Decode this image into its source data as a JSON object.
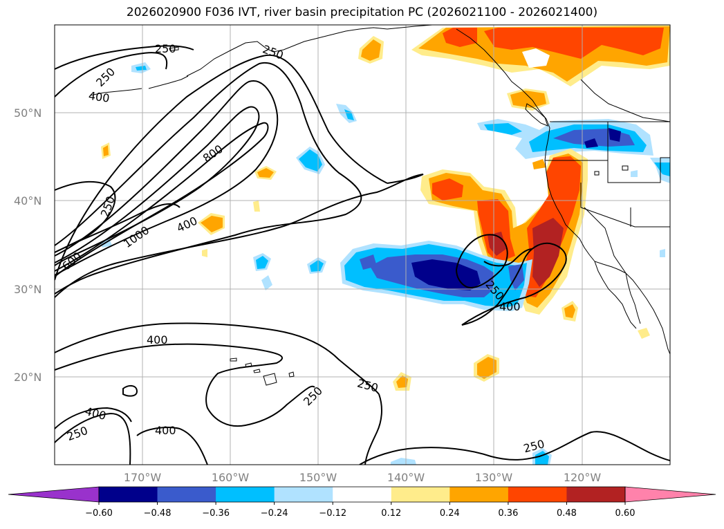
{
  "title": "2026020900 F036 IVT, river basin precipitation PC (2026021100 - 2026021400)",
  "axes": {
    "lat_labels": [
      "50°N",
      "40°N",
      "30°N",
      "20°N"
    ],
    "lon_labels": [
      "170°W",
      "160°W",
      "150°W",
      "140°W",
      "130°W",
      "120°W"
    ]
  },
  "contour_labels": [
    "250",
    "250",
    "400",
    "250",
    "800",
    "1000",
    "400",
    "600",
    "400",
    "250",
    "400",
    "250",
    "400",
    "250",
    "250",
    "250"
  ],
  "colorbar": {
    "colors": [
      "#9932cc",
      "#00008b",
      "#3a5bcc",
      "#00bfff",
      "#b0e2ff",
      "#ffffff",
      "#ffec8b",
      "#ffa500",
      "#ff4500",
      "#b22222",
      "#ff82ab"
    ],
    "labels": [
      "−0.60",
      "−0.48",
      "−0.36",
      "−0.24",
      "−0.12",
      "0.12",
      "0.24",
      "0.36",
      "0.48",
      "0.60"
    ]
  }
}
